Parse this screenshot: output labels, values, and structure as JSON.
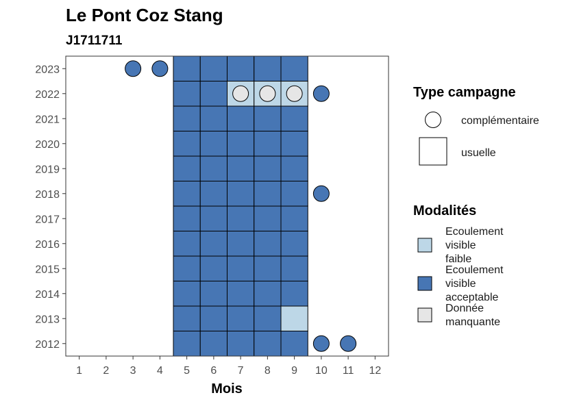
{
  "chart_data": {
    "type": "heatmap",
    "title": "Le Pont Coz Stang",
    "subtitle": "J1711711",
    "xlabel": "Mois",
    "ylabel": "",
    "x_ticks": [
      1,
      2,
      3,
      4,
      5,
      6,
      7,
      8,
      9,
      10,
      11,
      12
    ],
    "y_ticks": [
      2012,
      2013,
      2014,
      2015,
      2016,
      2017,
      2018,
      2019,
      2020,
      2021,
      2022,
      2023
    ],
    "xlim": [
      0.5,
      12.5
    ],
    "ylim": [
      2011.5,
      2023.5
    ],
    "grid": false,
    "legend_position": "right",
    "colors": {
      "Ecoulement visible faible": "#bdd7e7",
      "Ecoulement visible acceptable": "#4776b4",
      "Donnée manquante": "#e6e6e6"
    },
    "legends": {
      "shape": {
        "title": "Type campagne",
        "entries": [
          {
            "label": "complémentaire",
            "shape": "circle"
          },
          {
            "label": "usuelle",
            "shape": "square"
          }
        ]
      },
      "fill": {
        "title": "Modalités",
        "entries": [
          {
            "lines": [
              "Ecoulement",
              "visible",
              "faible"
            ],
            "color": "#bdd7e7"
          },
          {
            "lines": [
              "Ecoulement",
              "visible",
              "acceptable"
            ],
            "color": "#4776b4"
          },
          {
            "lines": [
              "Donnée",
              "manquante"
            ],
            "color": "#e6e6e6"
          }
        ]
      }
    },
    "observations": [
      {
        "month": 5,
        "year": 2012,
        "type": "usuelle",
        "mod": "Ecoulement visible acceptable"
      },
      {
        "month": 6,
        "year": 2012,
        "type": "usuelle",
        "mod": "Ecoulement visible acceptable"
      },
      {
        "month": 7,
        "year": 2012,
        "type": "usuelle",
        "mod": "Ecoulement visible acceptable"
      },
      {
        "month": 8,
        "year": 2012,
        "type": "usuelle",
        "mod": "Ecoulement visible acceptable"
      },
      {
        "month": 9,
        "year": 2012,
        "type": "usuelle",
        "mod": "Ecoulement visible acceptable"
      },
      {
        "month": 10,
        "year": 2012,
        "type": "complémentaire",
        "mod": "Ecoulement visible acceptable"
      },
      {
        "month": 11,
        "year": 2012,
        "type": "complémentaire",
        "mod": "Ecoulement visible acceptable"
      },
      {
        "month": 5,
        "year": 2013,
        "type": "usuelle",
        "mod": "Ecoulement visible acceptable"
      },
      {
        "month": 6,
        "year": 2013,
        "type": "usuelle",
        "mod": "Ecoulement visible acceptable"
      },
      {
        "month": 7,
        "year": 2013,
        "type": "usuelle",
        "mod": "Ecoulement visible acceptable"
      },
      {
        "month": 8,
        "year": 2013,
        "type": "usuelle",
        "mod": "Ecoulement visible acceptable"
      },
      {
        "month": 9,
        "year": 2013,
        "type": "usuelle",
        "mod": "Ecoulement visible faible"
      },
      {
        "month": 5,
        "year": 2014,
        "type": "usuelle",
        "mod": "Ecoulement visible acceptable"
      },
      {
        "month": 6,
        "year": 2014,
        "type": "usuelle",
        "mod": "Ecoulement visible acceptable"
      },
      {
        "month": 7,
        "year": 2014,
        "type": "usuelle",
        "mod": "Ecoulement visible acceptable"
      },
      {
        "month": 8,
        "year": 2014,
        "type": "usuelle",
        "mod": "Ecoulement visible acceptable"
      },
      {
        "month": 9,
        "year": 2014,
        "type": "usuelle",
        "mod": "Ecoulement visible acceptable"
      },
      {
        "month": 5,
        "year": 2015,
        "type": "usuelle",
        "mod": "Ecoulement visible acceptable"
      },
      {
        "month": 6,
        "year": 2015,
        "type": "usuelle",
        "mod": "Ecoulement visible acceptable"
      },
      {
        "month": 7,
        "year": 2015,
        "type": "usuelle",
        "mod": "Ecoulement visible acceptable"
      },
      {
        "month": 8,
        "year": 2015,
        "type": "usuelle",
        "mod": "Ecoulement visible acceptable"
      },
      {
        "month": 9,
        "year": 2015,
        "type": "usuelle",
        "mod": "Ecoulement visible acceptable"
      },
      {
        "month": 5,
        "year": 2016,
        "type": "usuelle",
        "mod": "Ecoulement visible acceptable"
      },
      {
        "month": 6,
        "year": 2016,
        "type": "usuelle",
        "mod": "Ecoulement visible acceptable"
      },
      {
        "month": 7,
        "year": 2016,
        "type": "usuelle",
        "mod": "Ecoulement visible acceptable"
      },
      {
        "month": 8,
        "year": 2016,
        "type": "usuelle",
        "mod": "Ecoulement visible acceptable"
      },
      {
        "month": 9,
        "year": 2016,
        "type": "usuelle",
        "mod": "Ecoulement visible acceptable"
      },
      {
        "month": 5,
        "year": 2017,
        "type": "usuelle",
        "mod": "Ecoulement visible acceptable"
      },
      {
        "month": 6,
        "year": 2017,
        "type": "usuelle",
        "mod": "Ecoulement visible acceptable"
      },
      {
        "month": 7,
        "year": 2017,
        "type": "usuelle",
        "mod": "Ecoulement visible acceptable"
      },
      {
        "month": 8,
        "year": 2017,
        "type": "usuelle",
        "mod": "Ecoulement visible acceptable"
      },
      {
        "month": 9,
        "year": 2017,
        "type": "usuelle",
        "mod": "Ecoulement visible acceptable"
      },
      {
        "month": 5,
        "year": 2018,
        "type": "usuelle",
        "mod": "Ecoulement visible acceptable"
      },
      {
        "month": 6,
        "year": 2018,
        "type": "usuelle",
        "mod": "Ecoulement visible acceptable"
      },
      {
        "month": 7,
        "year": 2018,
        "type": "usuelle",
        "mod": "Ecoulement visible acceptable"
      },
      {
        "month": 8,
        "year": 2018,
        "type": "usuelle",
        "mod": "Ecoulement visible acceptable"
      },
      {
        "month": 9,
        "year": 2018,
        "type": "usuelle",
        "mod": "Ecoulement visible acceptable"
      },
      {
        "month": 10,
        "year": 2018,
        "type": "complémentaire",
        "mod": "Ecoulement visible acceptable"
      },
      {
        "month": 5,
        "year": 2019,
        "type": "usuelle",
        "mod": "Ecoulement visible acceptable"
      },
      {
        "month": 6,
        "year": 2019,
        "type": "usuelle",
        "mod": "Ecoulement visible acceptable"
      },
      {
        "month": 7,
        "year": 2019,
        "type": "usuelle",
        "mod": "Ecoulement visible acceptable"
      },
      {
        "month": 8,
        "year": 2019,
        "type": "usuelle",
        "mod": "Ecoulement visible acceptable"
      },
      {
        "month": 9,
        "year": 2019,
        "type": "usuelle",
        "mod": "Ecoulement visible acceptable"
      },
      {
        "month": 5,
        "year": 2020,
        "type": "usuelle",
        "mod": "Ecoulement visible acceptable"
      },
      {
        "month": 6,
        "year": 2020,
        "type": "usuelle",
        "mod": "Ecoulement visible acceptable"
      },
      {
        "month": 7,
        "year": 2020,
        "type": "usuelle",
        "mod": "Ecoulement visible acceptable"
      },
      {
        "month": 8,
        "year": 2020,
        "type": "usuelle",
        "mod": "Ecoulement visible acceptable"
      },
      {
        "month": 9,
        "year": 2020,
        "type": "usuelle",
        "mod": "Ecoulement visible acceptable"
      },
      {
        "month": 5,
        "year": 2021,
        "type": "usuelle",
        "mod": "Ecoulement visible acceptable"
      },
      {
        "month": 6,
        "year": 2021,
        "type": "usuelle",
        "mod": "Ecoulement visible acceptable"
      },
      {
        "month": 7,
        "year": 2021,
        "type": "usuelle",
        "mod": "Ecoulement visible acceptable"
      },
      {
        "month": 8,
        "year": 2021,
        "type": "usuelle",
        "mod": "Ecoulement visible acceptable"
      },
      {
        "month": 9,
        "year": 2021,
        "type": "usuelle",
        "mod": "Ecoulement visible acceptable"
      },
      {
        "month": 5,
        "year": 2022,
        "type": "usuelle",
        "mod": "Ecoulement visible acceptable"
      },
      {
        "month": 6,
        "year": 2022,
        "type": "usuelle",
        "mod": "Ecoulement visible acceptable"
      },
      {
        "month": 7,
        "year": 2022,
        "type": "usuelle",
        "mod": "Ecoulement visible faible"
      },
      {
        "month": 8,
        "year": 2022,
        "type": "usuelle",
        "mod": "Ecoulement visible faible"
      },
      {
        "month": 9,
        "year": 2022,
        "type": "usuelle",
        "mod": "Ecoulement visible faible"
      },
      {
        "month": 7,
        "year": 2022,
        "type": "complémentaire",
        "mod": "Donnée manquante"
      },
      {
        "month": 8,
        "year": 2022,
        "type": "complémentaire",
        "mod": "Donnée manquante"
      },
      {
        "month": 9,
        "year": 2022,
        "type": "complémentaire",
        "mod": "Donnée manquante"
      },
      {
        "month": 10,
        "year": 2022,
        "type": "complémentaire",
        "mod": "Ecoulement visible acceptable"
      },
      {
        "month": 5,
        "year": 2023,
        "type": "usuelle",
        "mod": "Ecoulement visible acceptable"
      },
      {
        "month": 6,
        "year": 2023,
        "type": "usuelle",
        "mod": "Ecoulement visible acceptable"
      },
      {
        "month": 7,
        "year": 2023,
        "type": "usuelle",
        "mod": "Ecoulement visible acceptable"
      },
      {
        "month": 8,
        "year": 2023,
        "type": "usuelle",
        "mod": "Ecoulement visible acceptable"
      },
      {
        "month": 9,
        "year": 2023,
        "type": "usuelle",
        "mod": "Ecoulement visible acceptable"
      },
      {
        "month": 3,
        "year": 2023,
        "type": "complémentaire",
        "mod": "Ecoulement visible acceptable"
      },
      {
        "month": 4,
        "year": 2023,
        "type": "complémentaire",
        "mod": "Ecoulement visible acceptable"
      }
    ]
  }
}
